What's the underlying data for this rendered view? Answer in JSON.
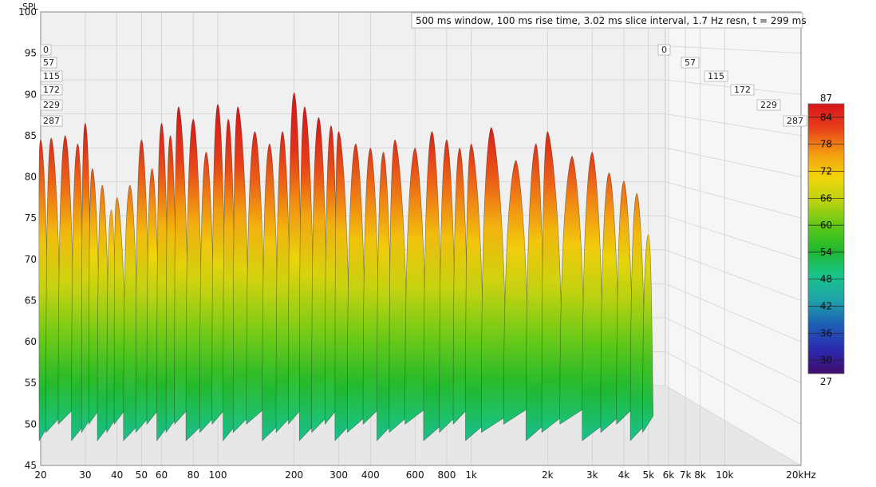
{
  "chart_data": {
    "type": "waterfall",
    "title": "",
    "annotation": "500 ms window, 100 ms rise time, 3.02 ms slice interval, 1.7 Hz resn, t = 299 ms",
    "ylabel": "SPL",
    "xunit": "kHz",
    "ylim": [
      45,
      100
    ],
    "y_ticks": [
      100,
      95,
      90,
      85,
      80,
      75,
      70,
      65,
      60,
      55,
      50,
      45
    ],
    "xlim": [
      20,
      20000
    ],
    "x_scale": "log",
    "x_ticks": [
      {
        "value": 20,
        "label": "20"
      },
      {
        "value": 30,
        "label": "30"
      },
      {
        "value": 40,
        "label": "40"
      },
      {
        "value": 50,
        "label": "50"
      },
      {
        "value": 60,
        "label": "60"
      },
      {
        "value": 80,
        "label": "80"
      },
      {
        "value": 100,
        "label": "100"
      },
      {
        "value": 200,
        "label": "200"
      },
      {
        "value": 300,
        "label": "300"
      },
      {
        "value": 400,
        "label": "400"
      },
      {
        "value": 600,
        "label": "600"
      },
      {
        "value": 800,
        "label": "800"
      },
      {
        "value": 1000,
        "label": "1k"
      },
      {
        "value": 2000,
        "label": "2k"
      },
      {
        "value": 3000,
        "label": "3k"
      },
      {
        "value": 4000,
        "label": "4k"
      },
      {
        "value": 5000,
        "label": "5k"
      },
      {
        "value": 6000,
        "label": "6k"
      },
      {
        "value": 7000,
        "label": "7k"
      },
      {
        "value": 8000,
        "label": "8k"
      },
      {
        "value": 10000,
        "label": "10k"
      },
      {
        "value": 20000,
        "label": "20kHz"
      }
    ],
    "time_slices_ms": [
      "0",
      "57",
      "115",
      "172",
      "229",
      "287"
    ],
    "colorbar": {
      "min": 27,
      "max": 87,
      "ticks": [
        84,
        78,
        72,
        66,
        60,
        54,
        48,
        42,
        36,
        30
      ],
      "min_label": "27",
      "max_label": "87",
      "colors": [
        "#420a6a",
        "#2a2ab0",
        "#1e5fb5",
        "#1ea3a8",
        "#19c48a",
        "#1fb82e",
        "#5cc818",
        "#b9d212",
        "#f2d40a",
        "#f39a12",
        "#e8401a",
        "#d6141a"
      ]
    },
    "envelope": {
      "freq_hz": [
        20,
        22,
        25,
        28,
        30,
        32,
        35,
        38,
        40,
        45,
        50,
        55,
        60,
        65,
        70,
        80,
        90,
        100,
        110,
        120,
        140,
        160,
        180,
        200,
        220,
        250,
        280,
        300,
        350,
        400,
        450,
        500,
        600,
        700,
        800,
        900,
        1000,
        1200,
        1500,
        1800,
        2000,
        2500,
        3000,
        3500,
        4000,
        4500,
        5000
      ],
      "peak_spl": [
        84.5,
        84.7,
        85,
        84,
        86.5,
        81,
        79,
        76,
        77.5,
        79,
        84.5,
        81,
        86.5,
        85,
        88.5,
        87,
        83,
        88.8,
        87,
        88.5,
        85.5,
        84,
        85.5,
        90.2,
        88.5,
        87.2,
        86.2,
        85.5,
        84,
        83.5,
        83,
        84.5,
        83.5,
        85.5,
        84.5,
        83.5,
        84,
        86,
        82,
        84,
        85.5,
        82.5,
        83,
        80.5,
        79.5,
        78,
        73
      ]
    },
    "grid": true
  }
}
